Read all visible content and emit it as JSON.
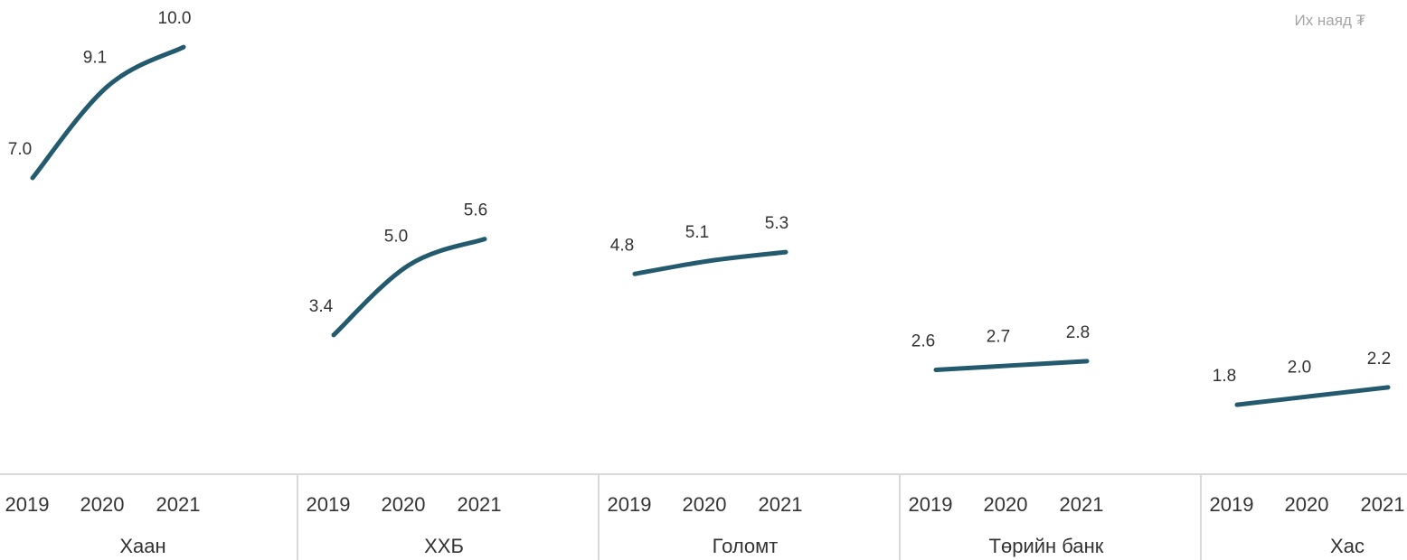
{
  "colors": {
    "line": "#245a6e",
    "axis": "#d9d9d9",
    "text": "#333333",
    "unit": "#a6a6a6"
  },
  "chart_data": {
    "type": "line",
    "unit_label": "Их наяд ₮",
    "years": [
      "2019",
      "2020",
      "2021"
    ],
    "groups": [
      {
        "name": "Хаан",
        "values": [
          7.0,
          9.1,
          10.0
        ],
        "labels": [
          "7.0",
          "9.1",
          "10.0"
        ]
      },
      {
        "name": "ХХБ",
        "values": [
          3.4,
          5.0,
          5.6
        ],
        "labels": [
          "3.4",
          "5.0",
          "5.6"
        ]
      },
      {
        "name": "Голомт",
        "values": [
          4.8,
          5.1,
          5.3
        ],
        "labels": [
          "4.8",
          "5.1",
          "5.3"
        ]
      },
      {
        "name": "Төрийн банк",
        "values": [
          2.6,
          2.7,
          2.8
        ],
        "labels": [
          "2.6",
          "2.7",
          "2.8"
        ]
      },
      {
        "name": "Хас",
        "values": [
          1.8,
          2.0,
          2.2
        ],
        "labels": [
          "1.8",
          "2.0",
          "2.2"
        ]
      }
    ]
  }
}
